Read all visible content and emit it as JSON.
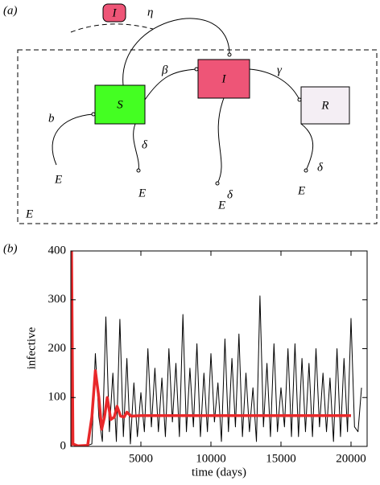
{
  "diagram": {
    "panel_label": "(a)",
    "nodes": [
      {
        "label": "S"
      },
      {
        "label": "I"
      },
      {
        "label": "R"
      }
    ],
    "import_node": {
      "label": "I"
    },
    "rates": {
      "import": "η",
      "infection": "β",
      "recovery": "γ",
      "birth": "b",
      "death_s": "δ",
      "death_i": "δ",
      "death_r": "δ"
    },
    "environment": {
      "birth_source": "E",
      "sink_s": "E",
      "sink_i": "E",
      "sink_r": "E",
      "box": "E"
    }
  },
  "chart_data": {
    "type": "line",
    "panel_label": "(b)",
    "x_label": "time (days)",
    "y_label": "infective",
    "xlim": [
      0,
      21150
    ],
    "ylim": [
      0,
      400
    ],
    "xticks": [
      5000,
      10000,
      15000,
      20000
    ],
    "yticks": [
      0,
      100,
      200,
      300,
      400
    ],
    "series": [
      {
        "color": "#000000",
        "width": 1,
        "x": [
          0,
          1000,
          1500,
          1750,
          2000,
          2250,
          2500,
          2750,
          3000,
          3250,
          3500,
          3750,
          4000,
          4250,
          4500,
          4750,
          5000,
          5250,
          5500,
          5750,
          6000,
          6250,
          6500,
          6750,
          7000,
          7250,
          7500,
          7750,
          8000,
          8250,
          8500,
          8750,
          9000,
          9250,
          9500,
          9750,
          10000,
          10250,
          10500,
          10750,
          11000,
          11250,
          11500,
          11750,
          12000,
          12250,
          12500,
          12750,
          13000,
          13250,
          13500,
          13750,
          14000,
          14250,
          14500,
          14750,
          15000,
          15250,
          15500,
          15750,
          16000,
          16250,
          16500,
          16750,
          17000,
          17250,
          17500,
          17750,
          18000,
          18250,
          18500,
          18750,
          19000,
          19250,
          19500,
          19750,
          20000,
          20250,
          20500,
          20750
        ],
        "values": [
          0,
          0,
          5,
          190,
          60,
          10,
          265,
          30,
          150,
          10,
          260,
          20,
          180,
          5,
          130,
          20,
          110,
          30,
          200,
          40,
          160,
          30,
          140,
          20,
          200,
          50,
          170,
          20,
          270,
          30,
          160,
          40,
          210,
          20,
          150,
          30,
          190,
          50,
          130,
          10,
          220,
          30,
          180,
          40,
          230,
          20,
          150,
          30,
          120,
          10,
          308,
          40,
          170,
          20,
          210,
          30,
          120,
          40,
          200,
          20,
          210,
          20,
          180,
          30,
          170,
          20,
          200,
          40,
          150,
          30,
          140,
          10,
          200,
          20,
          180,
          30,
          262,
          40,
          30,
          120
        ]
      },
      {
        "color": "#e8282a",
        "width": 3.5,
        "x": [
          0,
          50,
          150,
          500,
          1200,
          1500,
          1750,
          2000,
          2200,
          2400,
          2600,
          2850,
          3100,
          3300,
          3550,
          3800,
          4000,
          4300,
          5000,
          20000
        ],
        "values": [
          0,
          400,
          5,
          1,
          2,
          60,
          155,
          100,
          35,
          60,
          100,
          55,
          60,
          82,
          62,
          60,
          70,
          62,
          63,
          63
        ]
      }
    ]
  }
}
